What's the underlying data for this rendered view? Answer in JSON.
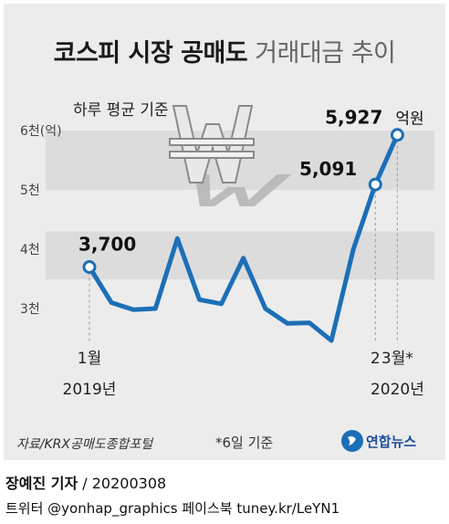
{
  "chart_data": {
    "type": "line",
    "title_bold": "코스피 시장 공매도",
    "title_light": "거래대금 추이",
    "subtitle": "하루 평균 기준",
    "unit": "억원",
    "y_ticks": [
      {
        "value": 3000,
        "label": "3천"
      },
      {
        "value": 4000,
        "label": "4천"
      },
      {
        "value": 5000,
        "label": "5천"
      },
      {
        "value": 6000,
        "label": "6천(억)"
      }
    ],
    "ylim": [
      2500,
      6300
    ],
    "x_tick_labels": [
      {
        "index": 0,
        "month": "1월",
        "year": "2019년"
      },
      {
        "index": 13,
        "month": "2",
        "year": ""
      },
      {
        "index": 14,
        "month": "3월*",
        "year": "2020년"
      }
    ],
    "values": [
      3700,
      3100,
      2980,
      3000,
      4180,
      3150,
      3080,
      3850,
      3000,
      2750,
      2760,
      2460,
      4000,
      5091,
      5927
    ],
    "highlighted": [
      {
        "index": 0,
        "label": "3,700"
      },
      {
        "index": 13,
        "label": "5,091"
      },
      {
        "index": 14,
        "label": "5,927"
      }
    ],
    "line_color": "#1c6fb7",
    "band_color": "#dcdcdc"
  },
  "footer": {
    "source": "자료/KRX공매도종합포털",
    "note": "*6일 기준",
    "logo_text": "연합뉴스",
    "reporter": "장예진 기자",
    "date": "/ 20200308",
    "social": "트위터 @yonhap_graphics  페이스북 tuney.kr/LeYN1"
  }
}
